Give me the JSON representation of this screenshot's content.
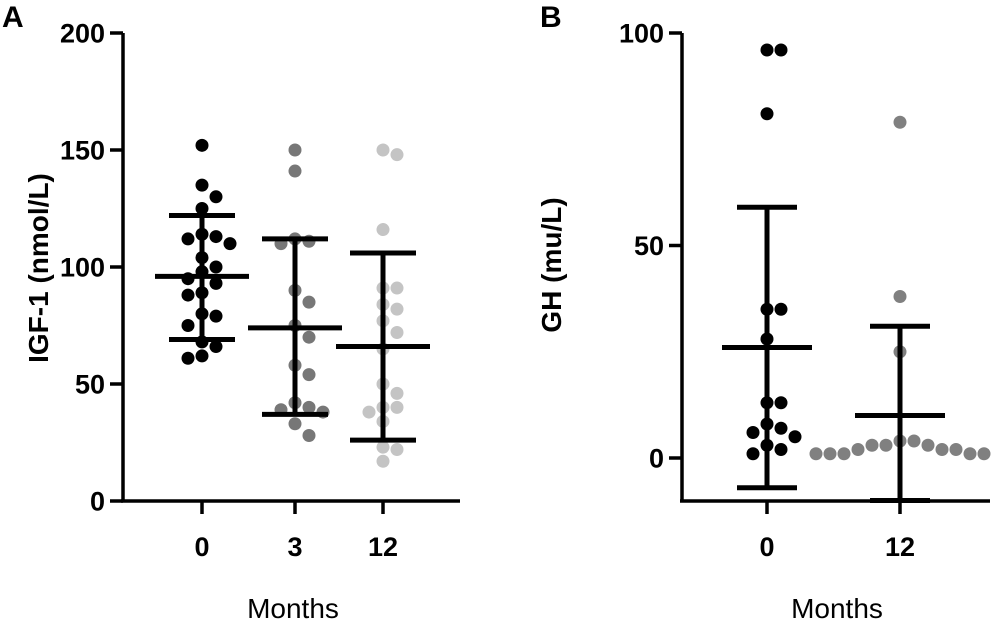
{
  "chart_data": [
    {
      "type": "scatter",
      "panel": "A",
      "xlabel": "Months",
      "ylabel": "IGF-1 (nmol/L)",
      "ylim": [
        0,
        200
      ],
      "yticks": [
        0,
        50,
        100,
        150,
        200
      ],
      "categories": [
        "0",
        "3",
        "12"
      ],
      "series": [
        {
          "category": "0",
          "color": "#000000",
          "mean": 96,
          "sd_upper": 122,
          "sd_lower": 69,
          "values": [
            152,
            135,
            130,
            125,
            114,
            113,
            112,
            110,
            104,
            100,
            98,
            95,
            93,
            89,
            88,
            80,
            79,
            75,
            68,
            66,
            62,
            61
          ]
        },
        {
          "category": "3",
          "color": "#777777",
          "mean": 74,
          "sd_upper": 112,
          "sd_lower": 37,
          "values": [
            150,
            141,
            112,
            111,
            110,
            90,
            85,
            75,
            70,
            58,
            54,
            42,
            40,
            39,
            38,
            33,
            28
          ]
        },
        {
          "category": "12",
          "color": "#c4c4c4",
          "mean": 66,
          "sd_upper": 106,
          "sd_lower": 26,
          "values": [
            150,
            148,
            116,
            91,
            91,
            84,
            82,
            77,
            72,
            65,
            50,
            46,
            40,
            40,
            38,
            34,
            23,
            22,
            17
          ]
        }
      ]
    },
    {
      "type": "scatter",
      "panel": "B",
      "xlabel": "Months",
      "ylabel": "GH (mu/L)",
      "ylim": [
        -10,
        100
      ],
      "yticks": [
        0,
        50,
        100
      ],
      "categories": [
        "0",
        "12"
      ],
      "series": [
        {
          "category": "0",
          "color": "#000000",
          "mean": 26,
          "sd_upper": 59,
          "sd_lower": -7,
          "values": [
            96,
            96,
            81,
            35,
            35,
            28,
            13,
            13,
            8,
            7,
            6,
            5,
            3,
            2,
            1
          ]
        },
        {
          "category": "12",
          "color": "#808080",
          "mean": 10,
          "sd_upper": 31,
          "sd_lower": -10,
          "values": [
            79,
            38,
            25,
            4,
            4,
            3,
            3,
            3,
            2,
            2,
            2,
            1,
            1,
            1,
            1,
            1
          ]
        }
      ]
    }
  ]
}
